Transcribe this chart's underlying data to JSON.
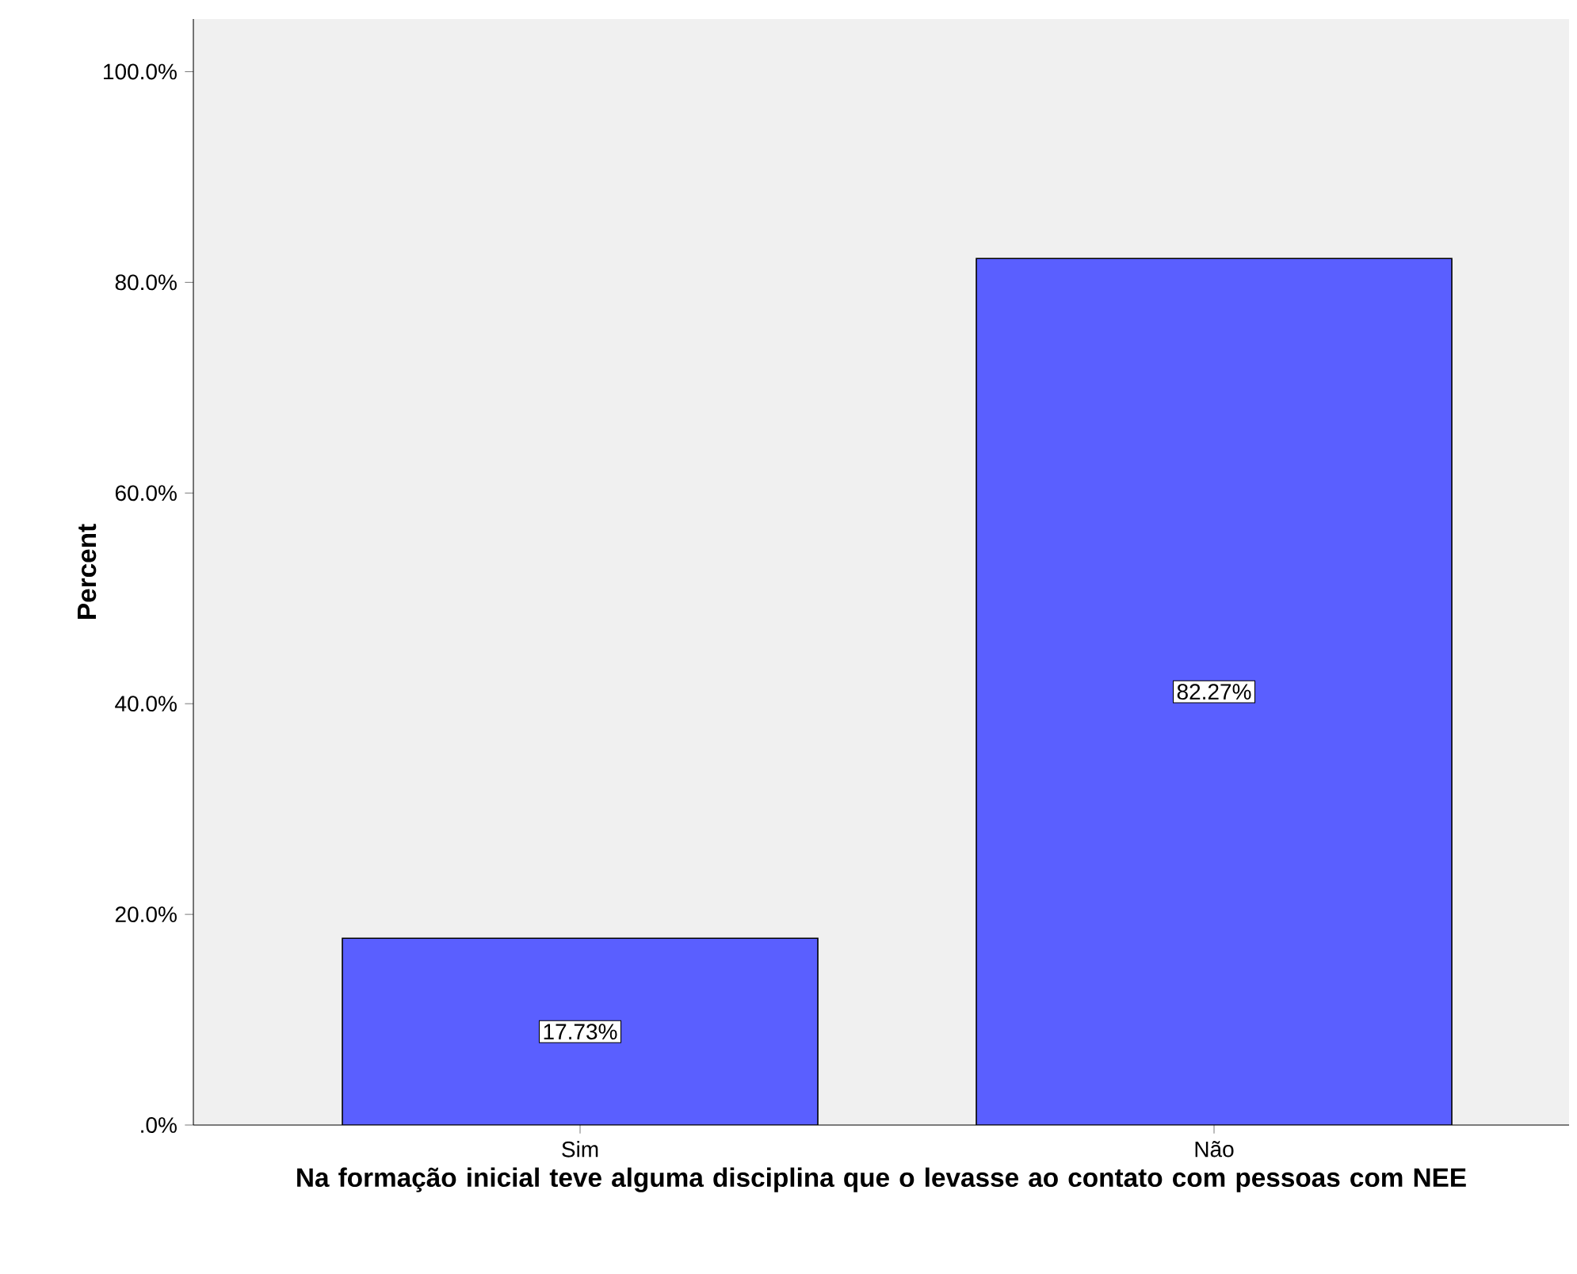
{
  "chart_data": {
    "type": "bar",
    "xlabel": "Na formação inicial teve alguma disciplina que o levasse ao contato com pessoas com NEE",
    "ylabel": "Percent",
    "categories": [
      "Sim",
      "Não"
    ],
    "values": [
      17.73,
      82.27
    ],
    "value_labels": [
      "17.73%",
      "82.27%"
    ],
    "color": "#5a5fff",
    "ylim": [
      0,
      105
    ],
    "yticks": [
      {
        "value": 0,
        "label": ".0%"
      },
      {
        "value": 20,
        "label": "20.0%"
      },
      {
        "value": 40,
        "label": "40.0%"
      },
      {
        "value": 60,
        "label": "60.0%"
      },
      {
        "value": 80,
        "label": "80.0%"
      },
      {
        "value": 100,
        "label": "100.0%"
      }
    ],
    "grid": false
  }
}
